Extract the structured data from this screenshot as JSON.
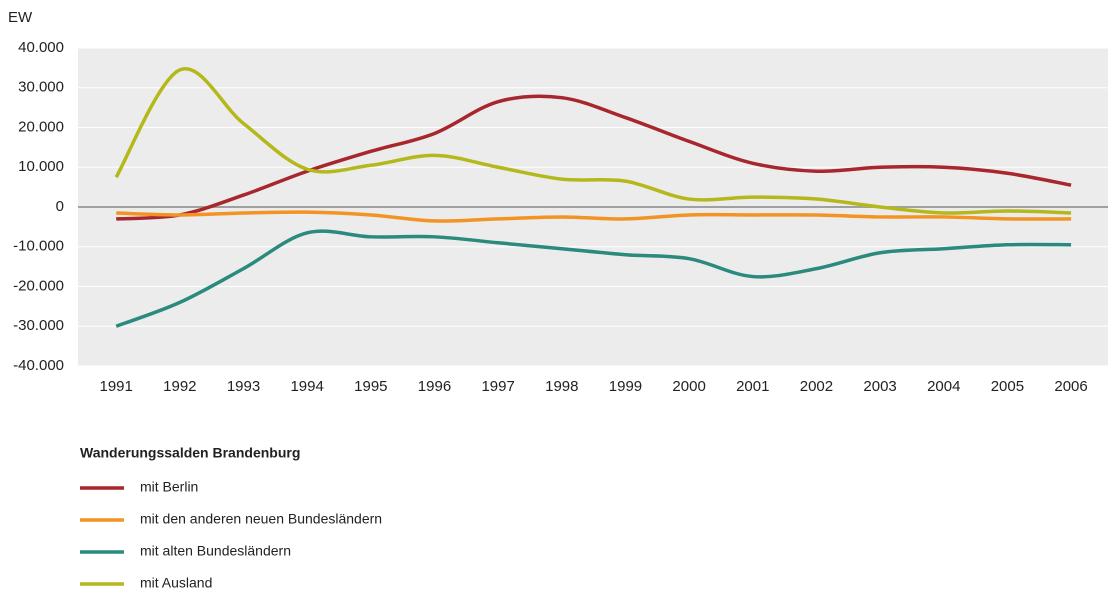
{
  "chart_data": {
    "type": "line",
    "y_axis_label": "EW",
    "legend_title": "Wanderungssalden Brandenburg",
    "x": [
      1991,
      1992,
      1993,
      1994,
      1995,
      1996,
      1997,
      1998,
      1999,
      2000,
      2001,
      2002,
      2003,
      2004,
      2005,
      2006
    ],
    "xlim": [
      1990.4,
      2006.58
    ],
    "xticks": [
      1991,
      1992,
      1993,
      1994,
      1995,
      1996,
      1997,
      1998,
      1999,
      2000,
      2001,
      2002,
      2003,
      2004,
      2005,
      2006
    ],
    "ylim": [
      -40000,
      40000
    ],
    "yticks": [
      {
        "value": -40000,
        "label": "-40.000"
      },
      {
        "value": -30000,
        "label": "-30.000"
      },
      {
        "value": -20000,
        "label": "-20.000"
      },
      {
        "value": -10000,
        "label": "-10.000"
      },
      0,
      {
        "value": 10000,
        "label": "10.000"
      },
      {
        "value": 20000,
        "label": "20.000"
      },
      {
        "value": 30000,
        "label": "30.000"
      },
      {
        "value": 40000,
        "label": "40.000"
      }
    ],
    "grid": true,
    "legend": "bottom-left",
    "series": [
      {
        "name": "mit Berlin",
        "color": "#a8262d",
        "values": [
          -3000,
          -2000,
          3000,
          9000,
          14000,
          18500,
          26500,
          27500,
          22500,
          16500,
          11000,
          9000,
          10000,
          10000,
          8500,
          5500
        ]
      },
      {
        "name": "mit den anderen neuen Bundesländern",
        "color": "#f39323",
        "values": [
          -1500,
          -2000,
          -1500,
          -1300,
          -2000,
          -3500,
          -3000,
          -2500,
          -3000,
          -2000,
          -2000,
          -2000,
          -2500,
          -2500,
          -3000,
          -3000
        ]
      },
      {
        "name": "mit alten Bundesländern",
        "color": "#2a8a7e",
        "values": [
          -30000,
          -24000,
          -15500,
          -6500,
          -7500,
          -7500,
          -9000,
          -10500,
          -12000,
          -13000,
          -17500,
          -15500,
          -11500,
          -10500,
          -9500,
          -9500
        ]
      },
      {
        "name": "mit Ausland",
        "color": "#b5b81a",
        "values": [
          7500,
          34500,
          21000,
          9500,
          10500,
          13000,
          10000,
          7000,
          6500,
          2000,
          2500,
          2000,
          0,
          -1500,
          -1000,
          -1500
        ]
      }
    ]
  }
}
